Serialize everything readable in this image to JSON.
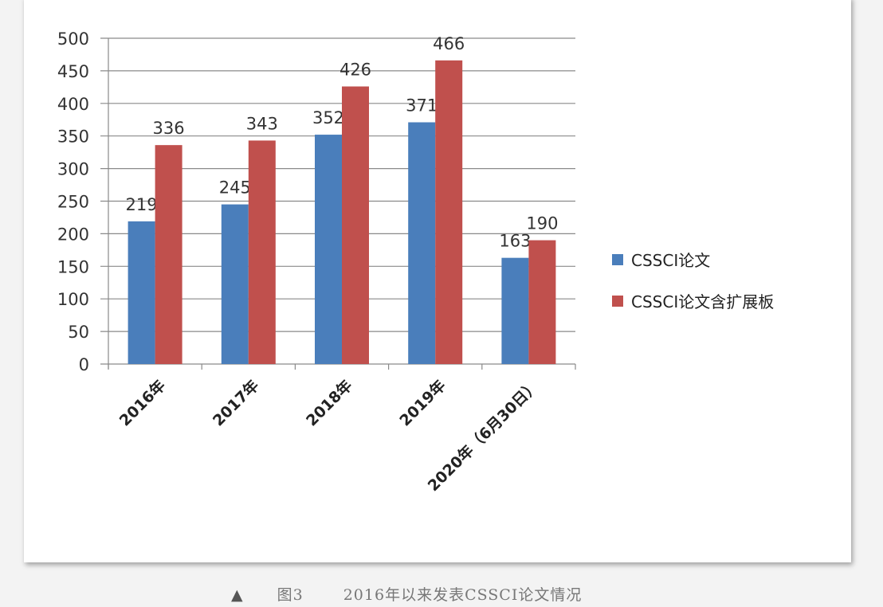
{
  "chart_data": {
    "type": "bar",
    "title": "",
    "categories": [
      "2016年",
      "2017年",
      "2018年",
      "2019年",
      "2020年（6月30日）"
    ],
    "series": [
      {
        "name": "CSSCI论文",
        "values": [
          219,
          245,
          352,
          371,
          163
        ],
        "color": "#4a7ebb"
      },
      {
        "name": "CSSCI论文含扩展板",
        "values": [
          336,
          343,
          426,
          466,
          190
        ],
        "color": "#c0504d"
      }
    ],
    "ylim": [
      0,
      500
    ],
    "yticks": [
      0,
      50,
      100,
      150,
      200,
      250,
      300,
      350,
      400,
      450,
      500
    ],
    "grid": true,
    "legend_position": "right",
    "data_labels": true
  },
  "caption": {
    "marker": "▲",
    "figure_number": "图3",
    "text": "2016年以来发表CSSCI论文情况"
  }
}
